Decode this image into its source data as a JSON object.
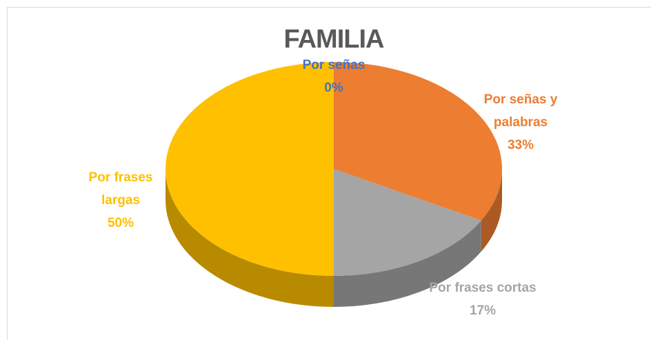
{
  "chart_data": {
    "type": "pie",
    "title": "FAMILIA",
    "categories": [
      "Por señas",
      "Por señas y palabras",
      "Por frases cortas",
      "Por frases largas"
    ],
    "values": [
      0,
      33,
      17,
      50
    ],
    "value_labels": [
      "0%",
      "33%",
      "17%",
      "50%"
    ],
    "colors": [
      "#4472c4",
      "#ed7d31",
      "#a5a5a5",
      "#ffc000"
    ]
  }
}
